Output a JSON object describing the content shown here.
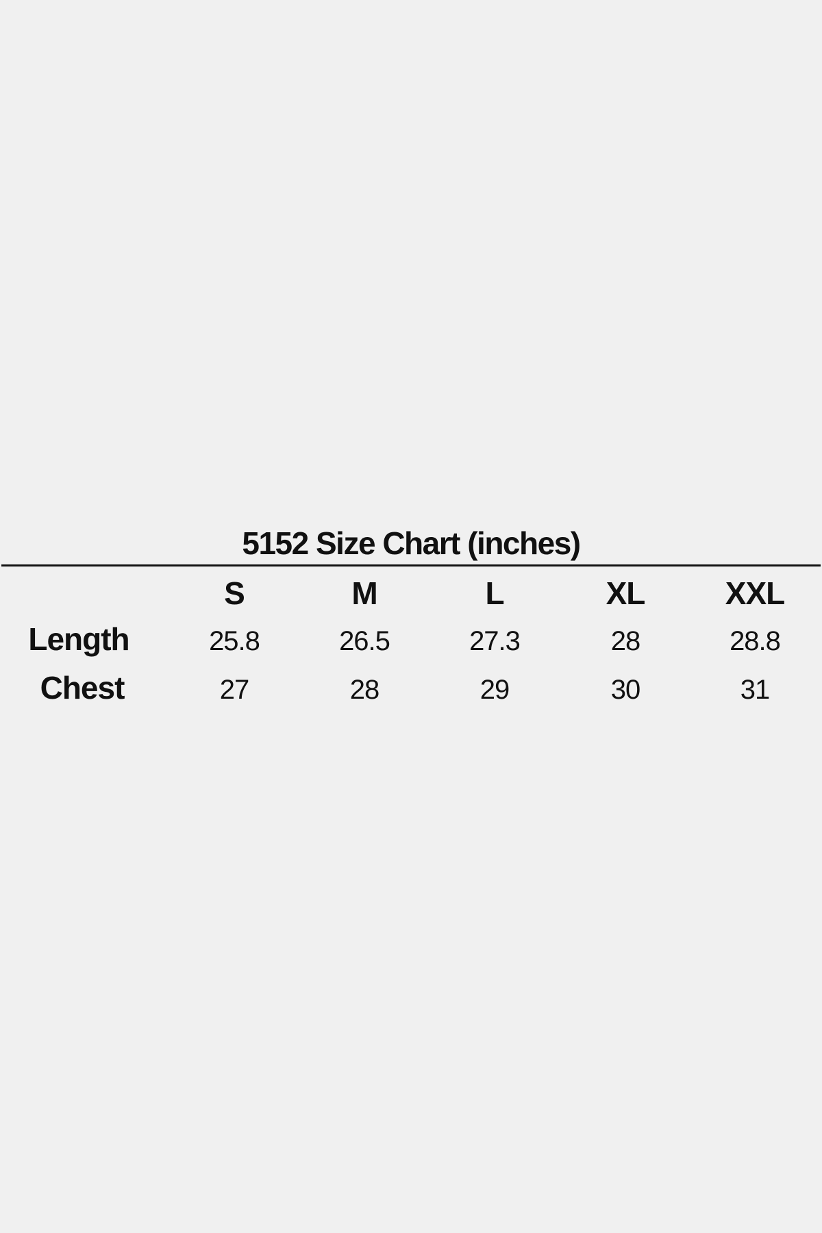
{
  "chart_data": {
    "type": "table",
    "title": "5152 Size Chart (inches)",
    "columns": [
      "S",
      "M",
      "L",
      "XL",
      "XXL"
    ],
    "rows": [
      {
        "label": "Length",
        "values": [
          "25.8",
          "26.5",
          "27.3",
          "28",
          "28.8"
        ]
      },
      {
        "label": "Chest",
        "values": [
          "27",
          "28",
          "29",
          "30",
          "31"
        ]
      }
    ]
  }
}
